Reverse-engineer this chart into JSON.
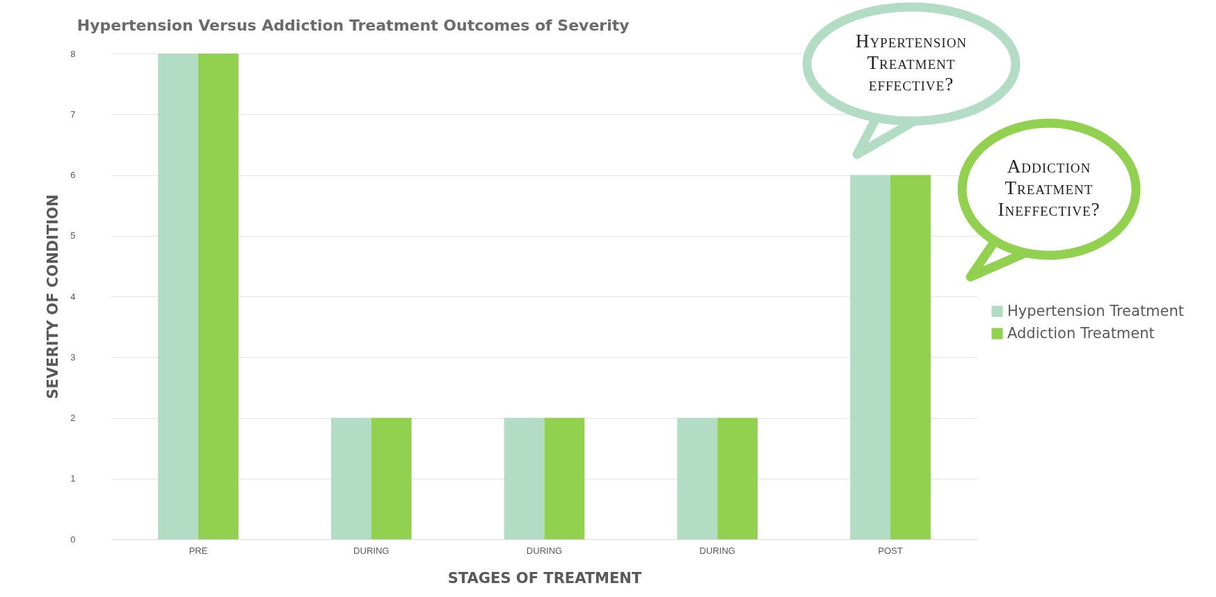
{
  "chart_data": {
    "type": "bar",
    "title": "Hypertension Versus Addiction Treatment Outcomes of Severity",
    "xlabel": "STAGES OF TREATMENT",
    "ylabel": "SEVERITY OF CONDITION",
    "categories": [
      "PRE",
      "DURING",
      "DURING",
      "DURING",
      "POST"
    ],
    "series": [
      {
        "name": "Hypertension Treatment",
        "color": "#b3dcc4",
        "values": [
          8,
          2,
          2,
          2,
          6
        ]
      },
      {
        "name": "Addiction Treatment",
        "color": "#92d050",
        "values": [
          8,
          2,
          2,
          2,
          6
        ]
      }
    ],
    "ylim": [
      0,
      8
    ],
    "yticks": [
      0,
      1,
      2,
      3,
      4,
      5,
      6,
      7,
      8
    ],
    "grid": "y",
    "legend": "right",
    "annotations": [
      "Hypertension Treatment effective?",
      "Addiction Treatment Ineffective?"
    ]
  }
}
